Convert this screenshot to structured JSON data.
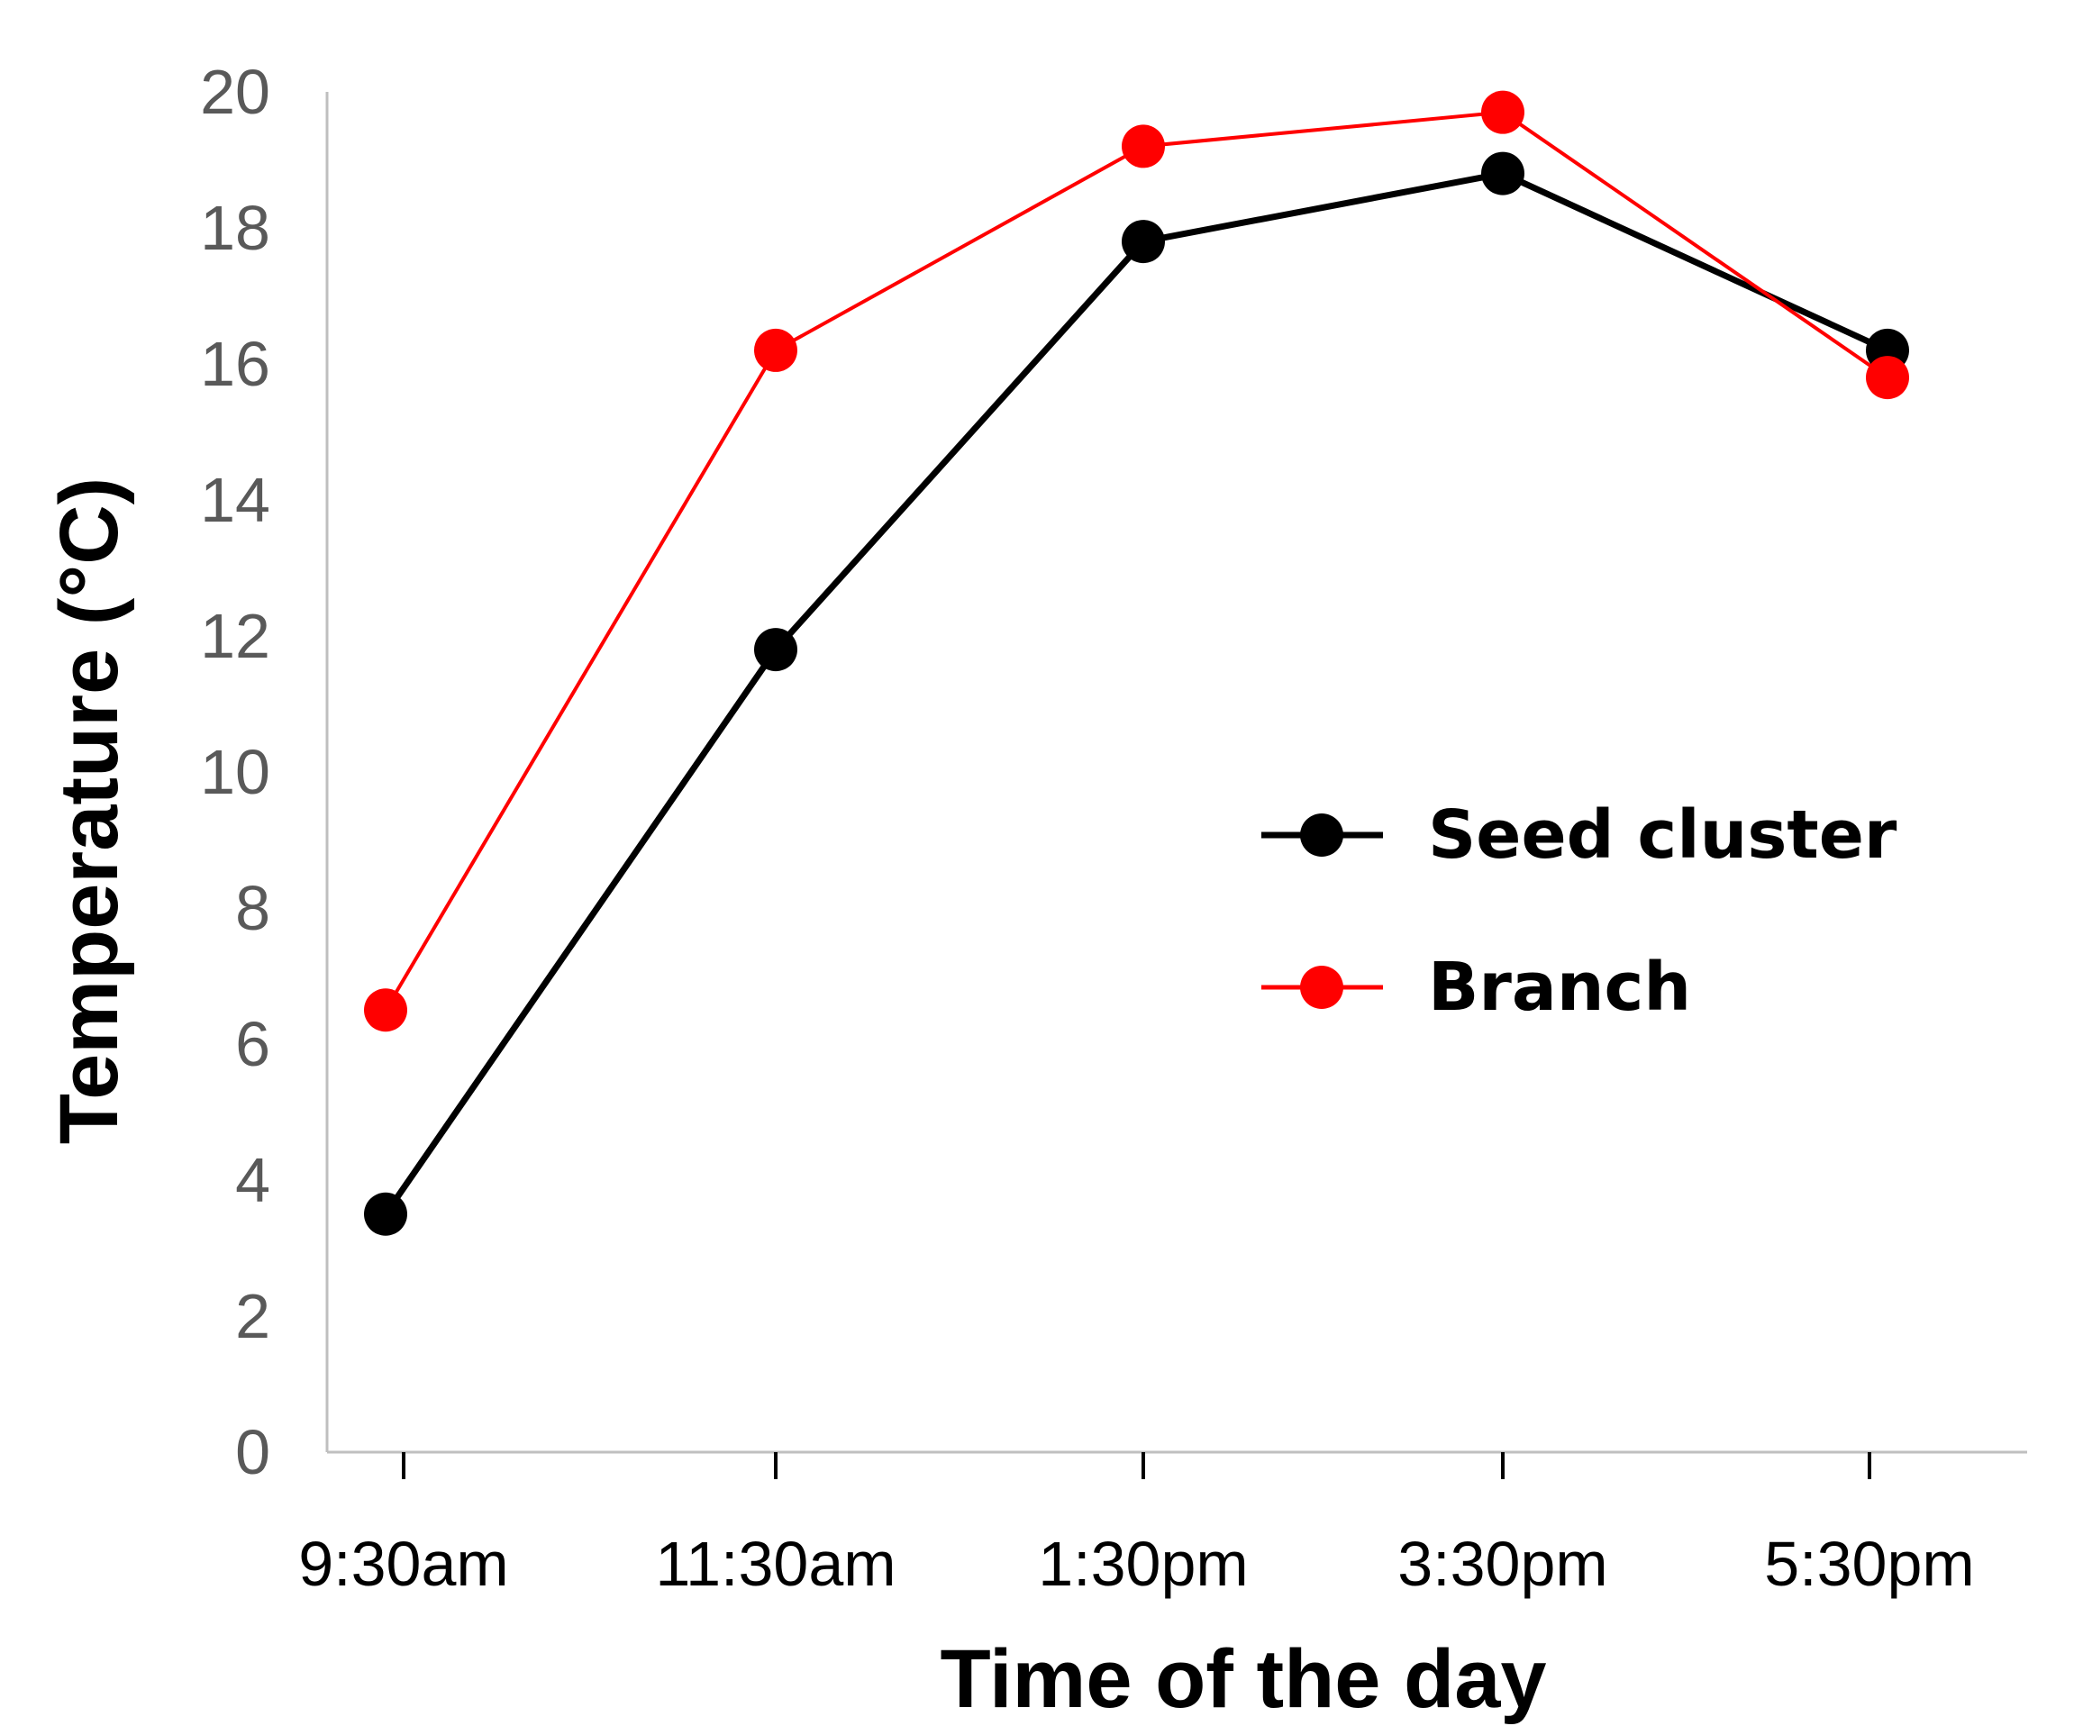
{
  "chart_data": {
    "type": "line",
    "title": "",
    "xlabel": "Time of the day",
    "ylabel": "Temperature (°C)",
    "ylim": [
      0,
      20
    ],
    "yticks": [
      0,
      2,
      4,
      6,
      8,
      10,
      12,
      14,
      16,
      18,
      20
    ],
    "categories": [
      "9:30am",
      "11:30am",
      "1:30pm",
      "3:30pm",
      "5:30pm"
    ],
    "grid": false,
    "legend_position": "center-right",
    "series": [
      {
        "name": "Seed cluster",
        "color": "#000000",
        "values": [
          3.5,
          11.8,
          17.8,
          18.8,
          16.2
        ]
      },
      {
        "name": "Branch",
        "color": "#ff0000",
        "values": [
          6.5,
          16.2,
          19.2,
          19.7,
          15.8
        ]
      }
    ]
  }
}
